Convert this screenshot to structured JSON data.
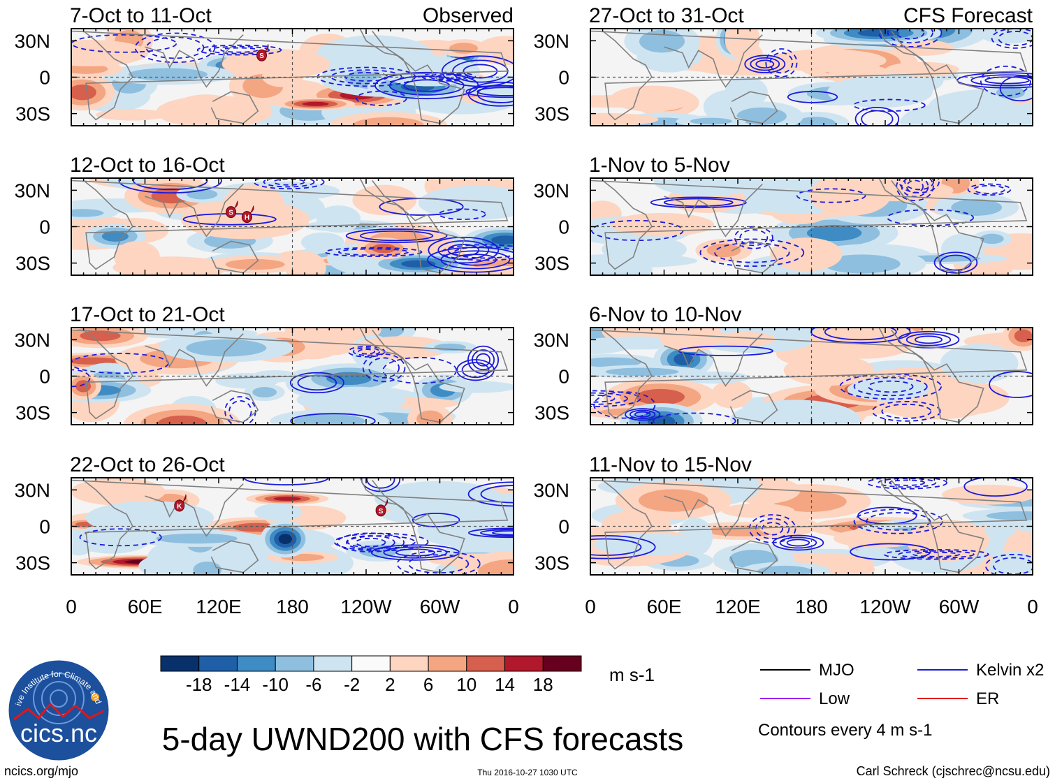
{
  "figure": {
    "main_title": "5-day UWND200 with CFS forecasts",
    "units": "m s-1",
    "footer_left": "ncics.org/mjo",
    "footer_center": "Thu 2016-10-27 1030 UTC",
    "footer_right": "Carl Schreck (cjschrec@ncsu.edu)",
    "logo_text": "cics.nc",
    "logo_arc_text": "Cooperative Institute for Climate and Satellites"
  },
  "chart_data": {
    "type": "heatmap",
    "variable": "200-hPa zonal wind anomaly (UWND200), 5-day means",
    "x_ticks": [
      "0",
      "60E",
      "120E",
      "180",
      "120W",
      "60W",
      "0"
    ],
    "y_ticks": [
      "30N",
      "0",
      "30S"
    ],
    "ylim": [
      -40,
      40
    ],
    "xlim": [
      0,
      360
    ],
    "columns": [
      {
        "label": "Observed",
        "panels": [
          {
            "period": "7-Oct to 11-Oct"
          },
          {
            "period": "12-Oct to 16-Oct"
          },
          {
            "period": "17-Oct to 21-Oct"
          },
          {
            "period": "22-Oct to 26-Oct"
          }
        ]
      },
      {
        "label": "CFS Forecast",
        "panels": [
          {
            "period": "27-Oct to 31-Oct"
          },
          {
            "period": "1-Nov to 5-Nov"
          },
          {
            "period": "6-Nov to 10-Nov"
          },
          {
            "period": "11-Nov to 15-Nov"
          }
        ]
      }
    ],
    "colorbar": {
      "levels": [
        "-18",
        "-14",
        "-10",
        "-6",
        "-2",
        "2",
        "6",
        "10",
        "14",
        "18"
      ],
      "colors": [
        "#08306b",
        "#1f5fa8",
        "#3f8cc5",
        "#8fbfdf",
        "#cfe4f1",
        "#fafafa",
        "#fdd5c0",
        "#f4a582",
        "#d6604d",
        "#b2182b",
        "#67001f"
      ]
    },
    "legend": [
      {
        "label": "MJO",
        "color": "#000000"
      },
      {
        "label": "Kelvin x2",
        "color": "#1a1adc"
      },
      {
        "label": "Low",
        "color": "#a020f0"
      },
      {
        "label": "ER",
        "color": "#e0161c"
      }
    ],
    "contour_note": "Contours every 4 m s-1",
    "storm_markers": [
      {
        "panel": "7-Oct to 11-Oct",
        "letter": "S",
        "lon": 155,
        "lat": 18
      },
      {
        "panel": "12-Oct to 16-Oct",
        "letter": "S",
        "lon": 130,
        "lat": 12
      },
      {
        "panel": "12-Oct to 16-Oct",
        "letter": "H",
        "lon": 143,
        "lat": 8
      },
      {
        "panel": "22-Oct to 26-Oct",
        "letter": "K",
        "lon": 88,
        "lat": 17
      },
      {
        "panel": "22-Oct to 26-Oct",
        "letter": "S",
        "lon": 252,
        "lat": 13
      }
    ]
  }
}
